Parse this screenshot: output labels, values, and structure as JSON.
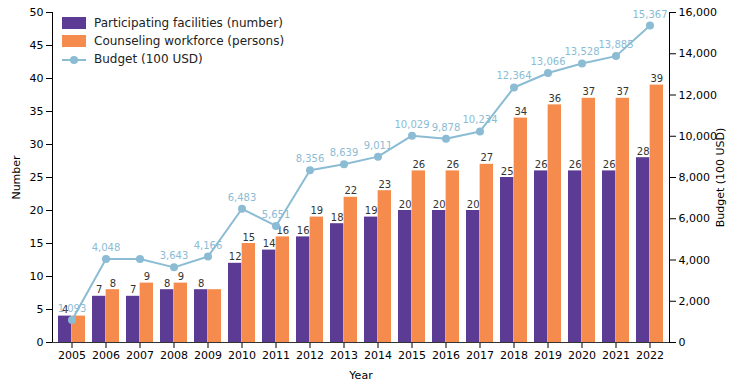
{
  "chart_data": {
    "type": "bar",
    "x_label": "Year",
    "y_label": "Number",
    "y2_label": "Budget (100 USD)",
    "categories": [
      "2005",
      "2006",
      "2007",
      "2008",
      "2009",
      "2010",
      "2011",
      "2012",
      "2013",
      "2014",
      "2015",
      "2016",
      "2017",
      "2018",
      "2019",
      "2020",
      "2021",
      "2022"
    ],
    "series": [
      {
        "name": "Participating facilities (number)",
        "type": "bar",
        "color": "#5c3b94",
        "values": [
          4,
          7,
          7,
          8,
          8,
          12,
          14,
          16,
          18,
          19,
          20,
          20,
          20,
          25,
          26,
          26,
          26,
          28
        ]
      },
      {
        "name": "Counseling workforce (persons)",
        "type": "bar",
        "color": "#f58b4c",
        "values": [
          4,
          8,
          9,
          9,
          8,
          15,
          16,
          19,
          22,
          23,
          26,
          26,
          27,
          34,
          36,
          37,
          37,
          39
        ],
        "value_labels": [
          null,
          "8",
          "9",
          "9",
          null,
          "15",
          "16",
          "19",
          "22",
          "23",
          "26",
          "26",
          "27",
          "34",
          "36",
          "37",
          "37",
          "39"
        ]
      },
      {
        "name": "Budget (100 USD)",
        "type": "line",
        "axis": "y2",
        "color": "#8bbcd4",
        "marker": "circle",
        "values": [
          1093,
          4048,
          4050,
          3643,
          4166,
          6483,
          5651,
          8356,
          8639,
          9011,
          10029,
          9878,
          10234,
          12364,
          13066,
          13528,
          13885,
          15367
        ],
        "value_labels": [
          "1,093",
          "4,048",
          null,
          "3,643",
          "4,166",
          "6,483",
          "5,651",
          "8,356",
          "8,639",
          "9,011",
          "10,029",
          "9,878",
          "10,234",
          "12,364",
          "13,066",
          "13,528",
          "13,885",
          "15,367"
        ]
      }
    ],
    "ylim": [
      0,
      50
    ],
    "yticks": [
      0,
      5,
      10,
      15,
      20,
      25,
      30,
      35,
      40,
      45,
      50
    ],
    "y2lim": [
      0,
      16000
    ],
    "y2ticks": [
      0,
      {
        "value": 2000,
        "label": "2,000"
      },
      {
        "value": 4000,
        "label": "4,000"
      },
      {
        "value": 6000,
        "label": "6,000"
      },
      {
        "value": 8000,
        "label": "8,000"
      },
      {
        "value": 10000,
        "label": "10,000"
      },
      {
        "value": 12000,
        "label": "12,000"
      },
      {
        "value": 14000,
        "label": "14,000"
      },
      {
        "value": 16000,
        "label": "16,000"
      }
    ],
    "data_labels": true,
    "grid": false,
    "legend": "top-left"
  }
}
